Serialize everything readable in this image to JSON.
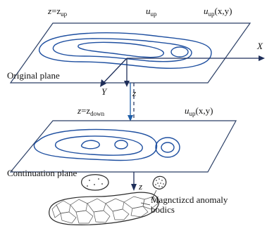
{
  "labels": {
    "z_top": "z",
    "z_top_eq": "=z",
    "z_top_sub": "up",
    "u_up": "u",
    "u_up_sub": "up",
    "u_up_xy_top": "u",
    "u_up_xy_top_sub": "up",
    "u_up_xy_top_args": "(x,y)",
    "axis_x": "X",
    "axis_y": "Y",
    "axis_z_upper": "z",
    "original_plane": "Original plane",
    "z_bottom": "z",
    "z_bottom_eq": "=z",
    "z_bottom_sub": "down",
    "u_up_xy_bottom": "u",
    "u_up_xy_bottom_sub": "up",
    "u_up_xy_bottom_args": "(x,y)",
    "continuation_plane": "Continuation plane",
    "axis_z_lower": "z",
    "anomaly_line1": "Magnctizcd anomaly",
    "anomaly_line2": "bodics"
  },
  "colors": {
    "contour": "#1e4fa0",
    "plane_edge": "#2b3f66",
    "text": "#111111"
  }
}
